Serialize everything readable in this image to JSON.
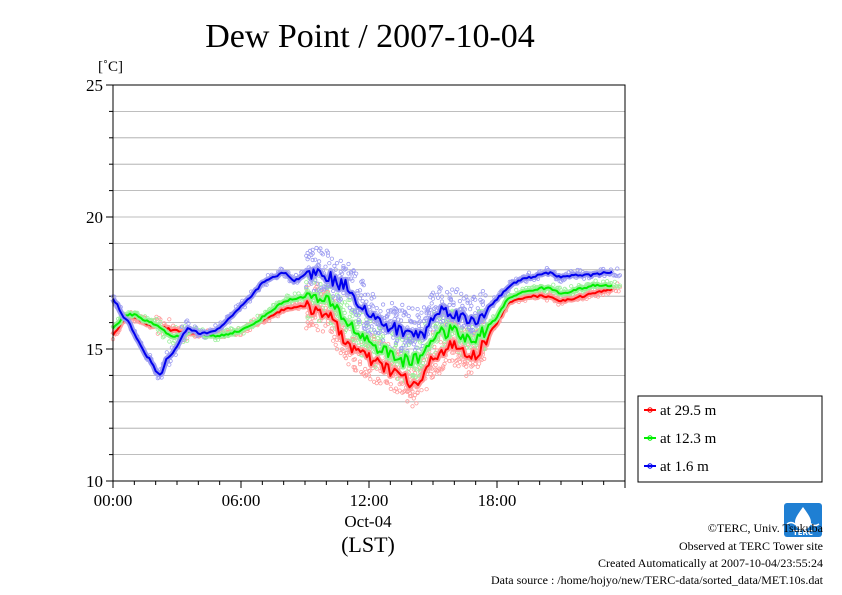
{
  "chart_data": {
    "type": "line",
    "title": "Dew Point / 2007-10-04",
    "ylabel": "[˚C]",
    "xlabel": "(LST)",
    "x_date_label": "Oct-04",
    "ylim": [
      10,
      25
    ],
    "xlim_hours": [
      0,
      24
    ],
    "y_ticks": [
      10,
      15,
      20,
      25
    ],
    "y_tick_labels": [
      "10",
      "15",
      "20",
      "25"
    ],
    "x_ticks": [
      0,
      6,
      12,
      18
    ],
    "x_tick_labels": [
      "00:00",
      "06:00",
      "12:00",
      "18:00"
    ],
    "grid": true,
    "legend_position": "right-bottom, outside plot",
    "x": [
      0,
      0.25,
      0.5,
      0.75,
      1,
      1.25,
      1.5,
      1.75,
      2,
      2.25,
      2.5,
      2.75,
      3,
      3.25,
      3.5,
      3.75,
      4,
      4.5,
      5,
      5.5,
      6,
      6.5,
      7,
      7.5,
      8,
      8.5,
      9,
      9.5,
      10,
      10.5,
      11,
      11.5,
      12,
      12.5,
      13,
      13.5,
      14,
      14.5,
      15,
      15.5,
      16,
      16.5,
      17,
      17.5,
      18,
      18.5,
      19,
      19.5,
      20,
      20.5,
      21,
      21.5,
      22,
      22.5,
      23,
      23.5
    ],
    "series": [
      {
        "name": "at 29.5 m",
        "color": "#ff0000",
        "halo": "#ff9b9b",
        "values": [
          15.5,
          15.8,
          16.1,
          16.2,
          16.2,
          16.1,
          16.0,
          15.9,
          15.9,
          15.8,
          15.8,
          15.7,
          15.7,
          15.6,
          15.6,
          15.6,
          15.6,
          15.6,
          15.5,
          15.6,
          15.7,
          15.9,
          16.1,
          16.3,
          16.5,
          16.6,
          16.6,
          16.5,
          16.4,
          15.8,
          15.2,
          14.9,
          14.6,
          14.4,
          14.2,
          14.0,
          13.6,
          13.8,
          14.7,
          15.0,
          15.1,
          14.8,
          14.7,
          15.4,
          16.0,
          16.7,
          16.9,
          17.0,
          17.0,
          17.0,
          16.8,
          16.9,
          17.0,
          17.1,
          17.2,
          17.3
        ]
      },
      {
        "name": "at 12.3 m",
        "color": "#00ee00",
        "halo": "#9bf09b",
        "values": [
          15.8,
          16.0,
          16.2,
          16.3,
          16.3,
          16.2,
          16.1,
          16.0,
          15.9,
          15.8,
          15.6,
          15.5,
          15.5,
          15.5,
          15.6,
          15.7,
          15.6,
          15.5,
          15.5,
          15.6,
          15.7,
          15.9,
          16.2,
          16.5,
          16.8,
          16.9,
          17.0,
          16.9,
          16.8,
          16.5,
          16.0,
          15.6,
          15.3,
          15.0,
          14.8,
          14.6,
          14.5,
          14.8,
          15.5,
          15.6,
          15.7,
          15.4,
          15.3,
          15.8,
          16.2,
          16.9,
          17.1,
          17.2,
          17.3,
          17.3,
          17.1,
          17.2,
          17.3,
          17.4,
          17.4,
          17.4
        ]
      },
      {
        "name": "at 1.6 m",
        "color": "#0000ee",
        "halo": "#9b9bf0",
        "values": [
          16.9,
          16.6,
          16.2,
          16.0,
          15.6,
          15.2,
          14.8,
          14.6,
          14.2,
          14.0,
          14.6,
          14.8,
          15.1,
          15.5,
          15.8,
          15.7,
          15.6,
          15.6,
          15.8,
          16.2,
          16.6,
          17.0,
          17.5,
          17.7,
          17.9,
          17.6,
          17.8,
          17.9,
          17.8,
          17.5,
          17.4,
          16.8,
          16.3,
          16.0,
          15.8,
          15.7,
          15.6,
          15.5,
          16.2,
          16.5,
          16.4,
          16.1,
          16.0,
          16.5,
          16.9,
          17.3,
          17.6,
          17.7,
          17.8,
          17.9,
          17.7,
          17.8,
          17.8,
          17.8,
          17.9,
          17.9
        ]
      }
    ]
  },
  "footer": {
    "copyright": "©TERC, Univ. Tsukuba",
    "observed": "Observed at TERC Tower site",
    "created": "Created Automatically at 2007-10-04/23:55:24",
    "source": "Data source : /home/hojyo/new/TERC-data/sorted_data/MET.10s.dat",
    "logo_text": "TERC"
  }
}
